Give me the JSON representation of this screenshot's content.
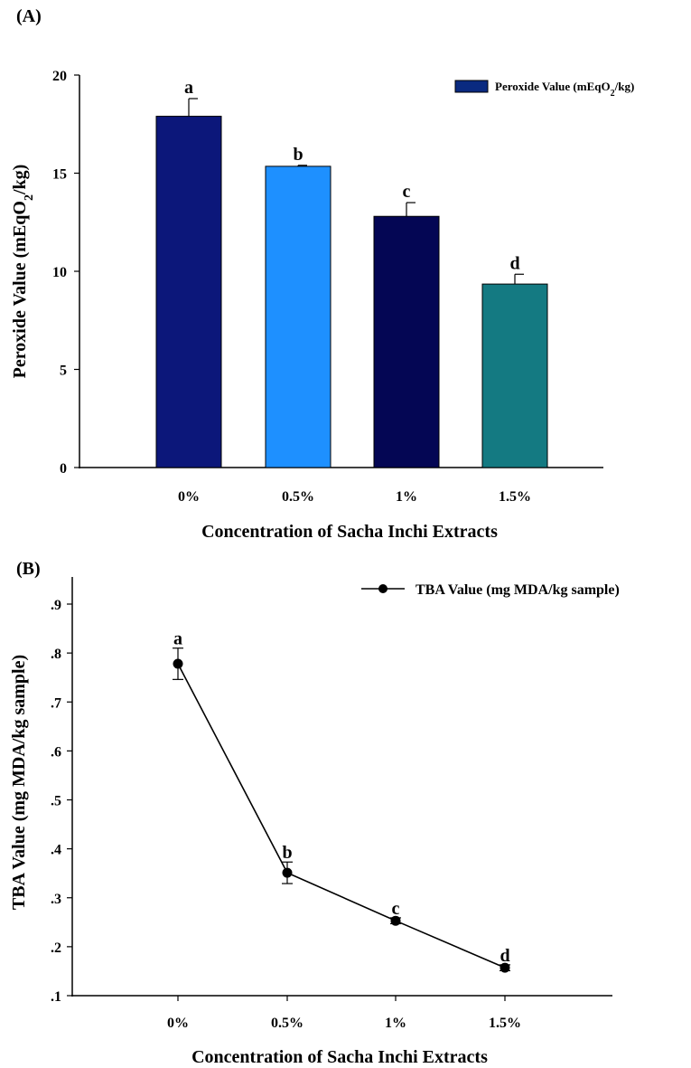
{
  "chart_data": [
    {
      "type": "bar",
      "panel_label": "(A)",
      "categories": [
        "0%",
        "0.5%",
        "1%",
        "1.5%"
      ],
      "series": [
        {
          "name": "Peroxide Value (mEqO2/kg)",
          "values": [
            17.9,
            15.35,
            12.8,
            9.35
          ],
          "errors": [
            0.9,
            0.05,
            0.7,
            0.5
          ],
          "colors": [
            "#0c177a",
            "#1e90ff",
            "#040654",
            "#147a82"
          ],
          "legend_color": "#0a2a80"
        }
      ],
      "significance_labels": [
        "a",
        "b",
        "c",
        "d"
      ],
      "xlabel": "Concentration of Sacha Inchi Extracts",
      "ylabel": "Peroxide Value (mEqO2/kg)",
      "ylabel_parts": {
        "before": "Peroxide Value (mEqO",
        "sub": "2",
        "after": "/kg)"
      },
      "legend_parts": {
        "before": "Peroxide Value (mEqO",
        "sub": "2",
        "after": "/kg)"
      },
      "yticks": [
        "0",
        "5",
        "10",
        "15",
        "20"
      ],
      "ytick_values": [
        0,
        5,
        10,
        15,
        20
      ],
      "ylim": [
        0,
        20
      ],
      "legend_position": "top-right",
      "grid": false
    },
    {
      "type": "line",
      "panel_label": "(B)",
      "categories": [
        "0%",
        "0.5%",
        "1%",
        "1.5%"
      ],
      "series": [
        {
          "name": "TBA Value (mg MDA/kg sample)",
          "values": [
            0.778,
            0.351,
            0.253,
            0.157
          ],
          "errors": [
            0.032,
            0.022,
            0.006,
            0.006
          ],
          "color": "#000000"
        }
      ],
      "significance_labels": [
        "a",
        "b",
        "c",
        "d"
      ],
      "xlabel": "Concentration of Sacha Inchi Extracts",
      "ylabel": "TBA Value (mg MDA/kg sample)",
      "yticks": [
        ".1",
        ".2",
        ".3",
        ".4",
        ".5",
        ".6",
        ".7",
        ".8",
        ".9"
      ],
      "ytick_values": [
        0.1,
        0.2,
        0.3,
        0.4,
        0.5,
        0.6,
        0.7,
        0.8,
        0.9
      ],
      "ylim": [
        0.1,
        0.9
      ],
      "legend_position": "top-right",
      "grid": false
    }
  ]
}
